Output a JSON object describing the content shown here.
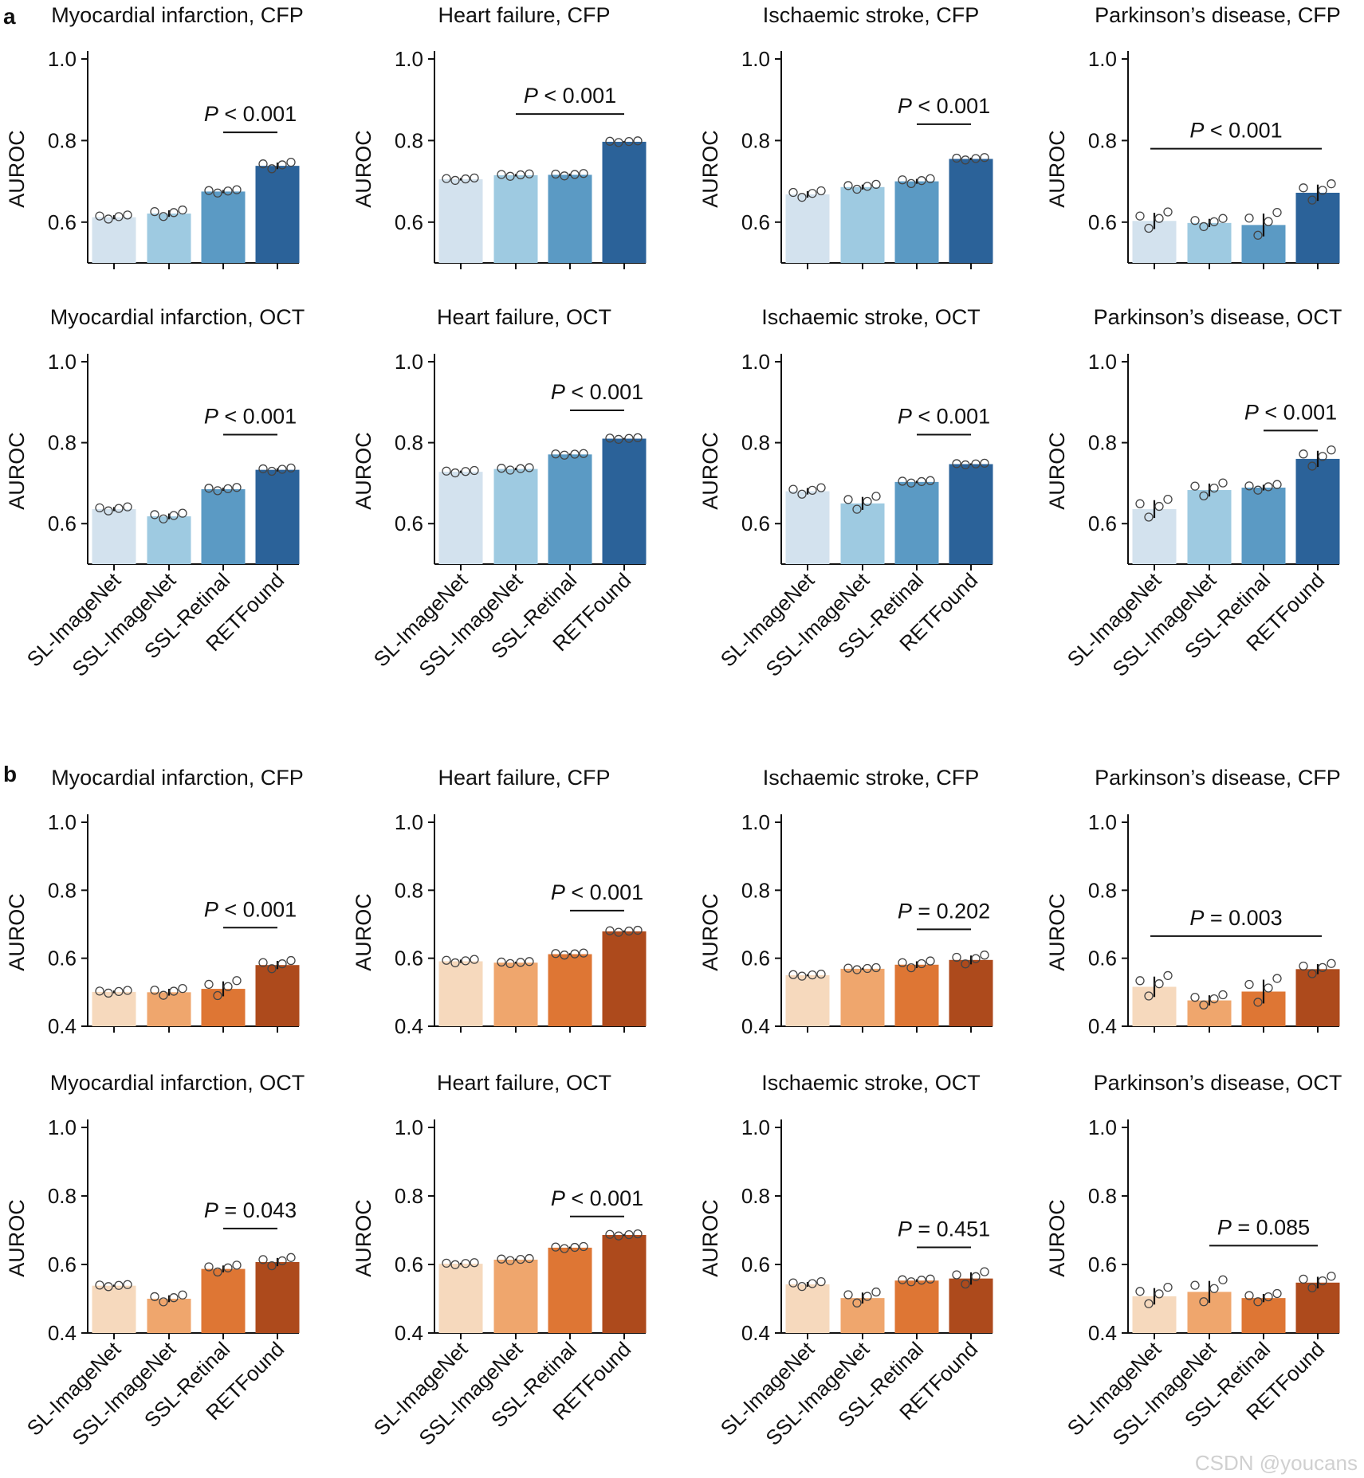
{
  "figure": {
    "categories": [
      "SL-ImageNet",
      "SSL-ImageNet",
      "SSL-Retinal",
      "RETFound"
    ],
    "ylabel": "AUROC",
    "watermark": "CSDN @youcans"
  },
  "panels": [
    {
      "letter": "a",
      "colors": [
        "#d3e2ee",
        "#9ecae1",
        "#5b9ac4",
        "#2b6299"
      ]
    },
    {
      "letter": "b",
      "colors": [
        "#f6d9bd",
        "#efa66d",
        "#de7634",
        "#ad4a1c"
      ]
    }
  ],
  "chart_data": [
    {
      "type": "bar",
      "panel": "a",
      "title": "Myocardial infarction, CFP",
      "ylim": [
        0.5,
        1.0
      ],
      "yticks": [
        0.6,
        0.8,
        1.0
      ],
      "values": [
        0.612,
        0.621,
        0.675,
        0.738
      ],
      "errors": [
        0.005,
        0.008,
        0.004,
        0.008
      ],
      "sig_text": "< 0.001",
      "sig_from": 2,
      "sig_to": 3,
      "sig_y": 0.82
    },
    {
      "type": "bar",
      "panel": "a",
      "title": "Heart failure, CFP",
      "ylim": [
        0.5,
        1.0
      ],
      "yticks": [
        0.6,
        0.8,
        1.0
      ],
      "values": [
        0.705,
        0.715,
        0.716,
        0.797
      ],
      "errors": [
        0.003,
        0.003,
        0.003,
        0.002
      ],
      "sig_text": "< 0.001",
      "sig_from": 1,
      "sig_to": 3,
      "sig_y": 0.865
    },
    {
      "type": "bar",
      "panel": "a",
      "title": "Ischaemic stroke, CFP",
      "ylim": [
        0.5,
        1.0
      ],
      "yticks": [
        0.6,
        0.8,
        1.0
      ],
      "values": [
        0.668,
        0.686,
        0.7,
        0.755
      ],
      "errors": [
        0.008,
        0.006,
        0.006,
        0.003
      ],
      "sig_text": "< 0.001",
      "sig_from": 2,
      "sig_to": 3,
      "sig_y": 0.84
    },
    {
      "type": "bar",
      "panel": "a",
      "title": "Parkinson’s disease, CFP",
      "ylim": [
        0.5,
        1.0
      ],
      "yticks": [
        0.6,
        0.8,
        1.0
      ],
      "values": [
        0.603,
        0.598,
        0.593,
        0.672
      ],
      "errors": [
        0.02,
        0.01,
        0.028,
        0.02
      ],
      "sig_text": "< 0.001",
      "sig_from": 0,
      "sig_to": 3,
      "sig_y": 0.78
    },
    {
      "type": "bar",
      "panel": "a",
      "title": "Myocardial infarction, OCT",
      "ylim": [
        0.5,
        1.0
      ],
      "yticks": [
        0.6,
        0.8,
        1.0
      ],
      "values": [
        0.636,
        0.618,
        0.685,
        0.733
      ],
      "errors": [
        0.005,
        0.007,
        0.004,
        0.004
      ],
      "sig_text": "< 0.001",
      "sig_from": 2,
      "sig_to": 3,
      "sig_y": 0.82
    },
    {
      "type": "bar",
      "panel": "a",
      "title": "Heart failure, OCT",
      "ylim": [
        0.5,
        1.0
      ],
      "yticks": [
        0.6,
        0.8,
        1.0
      ],
      "values": [
        0.728,
        0.735,
        0.771,
        0.81
      ],
      "errors": [
        0.003,
        0.003,
        0.002,
        0.002
      ],
      "sig_text": "< 0.001",
      "sig_from": 2,
      "sig_to": 3,
      "sig_y": 0.88
    },
    {
      "type": "bar",
      "panel": "a",
      "title": "Ischaemic stroke, OCT",
      "ylim": [
        0.5,
        1.0
      ],
      "yticks": [
        0.6,
        0.8,
        1.0
      ],
      "values": [
        0.68,
        0.65,
        0.703,
        0.747
      ],
      "errors": [
        0.008,
        0.016,
        0.003,
        0.002
      ],
      "sig_text": "< 0.001",
      "sig_from": 2,
      "sig_to": 3,
      "sig_y": 0.82
    },
    {
      "type": "bar",
      "panel": "a",
      "title": "Parkinson’s disease, OCT",
      "ylim": [
        0.5,
        1.0
      ],
      "yticks": [
        0.6,
        0.8,
        1.0
      ],
      "values": [
        0.636,
        0.683,
        0.689,
        0.76
      ],
      "errors": [
        0.022,
        0.016,
        0.007,
        0.02
      ],
      "sig_text": "< 0.001",
      "sig_from": 2,
      "sig_to": 3,
      "sig_y": 0.83
    },
    {
      "type": "bar",
      "panel": "b",
      "title": "Myocardial infarction, CFP",
      "ylim": [
        0.4,
        1.0
      ],
      "yticks": [
        0.4,
        0.6,
        0.8,
        1.0
      ],
      "values": [
        0.501,
        0.5,
        0.51,
        0.58
      ],
      "errors": [
        0.004,
        0.01,
        0.022,
        0.012
      ],
      "sig_text": "< 0.001",
      "sig_from": 2,
      "sig_to": 3,
      "sig_y": 0.69
    },
    {
      "type": "bar",
      "panel": "b",
      "title": "Heart failure, CFP",
      "ylim": [
        0.4,
        1.0
      ],
      "yticks": [
        0.4,
        0.6,
        0.8,
        1.0
      ],
      "values": [
        0.591,
        0.587,
        0.612,
        0.679
      ],
      "errors": [
        0.005,
        0.003,
        0.003,
        0.003
      ],
      "sig_text": "< 0.001",
      "sig_from": 2,
      "sig_to": 3,
      "sig_y": 0.74
    },
    {
      "type": "bar",
      "panel": "b",
      "title": "Ischaemic stroke, CFP",
      "ylim": [
        0.4,
        1.0
      ],
      "yticks": [
        0.4,
        0.6,
        0.8,
        1.0
      ],
      "values": [
        0.55,
        0.569,
        0.581,
        0.595
      ],
      "errors": [
        0.003,
        0.003,
        0.01,
        0.013
      ],
      "sig_text": "= 0.202",
      "sig_from": 2,
      "sig_to": 3,
      "sig_y": 0.685
    },
    {
      "type": "bar",
      "panel": "b",
      "title": "Parkinson’s disease, CFP",
      "ylim": [
        0.4,
        1.0
      ],
      "yticks": [
        0.4,
        0.6,
        0.8,
        1.0
      ],
      "values": [
        0.516,
        0.476,
        0.502,
        0.568
      ],
      "errors": [
        0.03,
        0.015,
        0.035,
        0.015
      ],
      "sig_text": "= 0.003",
      "sig_from": 0,
      "sig_to": 3,
      "sig_y": 0.665
    },
    {
      "type": "bar",
      "panel": "b",
      "title": "Myocardial infarction, OCT",
      "ylim": [
        0.4,
        1.0
      ],
      "yticks": [
        0.4,
        0.6,
        0.8,
        1.0
      ],
      "values": [
        0.538,
        0.5,
        0.587,
        0.607
      ],
      "errors": [
        0.003,
        0.01,
        0.01,
        0.012
      ],
      "sig_text": "= 0.043",
      "sig_from": 2,
      "sig_to": 3,
      "sig_y": 0.705
    },
    {
      "type": "bar",
      "panel": "b",
      "title": "Heart failure, OCT",
      "ylim": [
        0.4,
        1.0
      ],
      "yticks": [
        0.4,
        0.6,
        0.8,
        1.0
      ],
      "values": [
        0.602,
        0.614,
        0.649,
        0.686
      ],
      "errors": [
        0.003,
        0.003,
        0.003,
        0.003
      ],
      "sig_text": "< 0.001",
      "sig_from": 2,
      "sig_to": 3,
      "sig_y": 0.74
    },
    {
      "type": "bar",
      "panel": "b",
      "title": "Ischaemic stroke, OCT",
      "ylim": [
        0.4,
        1.0
      ],
      "yticks": [
        0.4,
        0.6,
        0.8,
        1.0
      ],
      "values": [
        0.542,
        0.502,
        0.553,
        0.559
      ],
      "errors": [
        0.007,
        0.016,
        0.004,
        0.018
      ],
      "sig_text": "= 0.451",
      "sig_from": 2,
      "sig_to": 3,
      "sig_y": 0.65
    },
    {
      "type": "bar",
      "panel": "b",
      "title": "Parkinson’s disease, OCT",
      "ylim": [
        0.4,
        1.0
      ],
      "yticks": [
        0.4,
        0.6,
        0.8,
        1.0
      ],
      "values": [
        0.507,
        0.52,
        0.502,
        0.547
      ],
      "errors": [
        0.024,
        0.032,
        0.012,
        0.017
      ],
      "sig_text": "= 0.085",
      "sig_from": 1,
      "sig_to": 3,
      "sig_y": 0.655
    }
  ]
}
